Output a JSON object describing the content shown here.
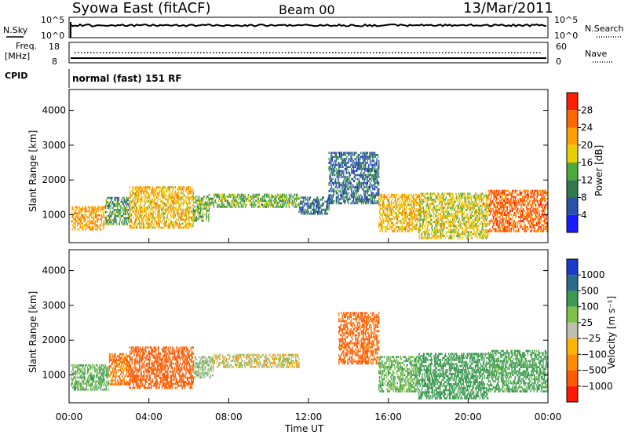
{
  "header": {
    "station": "Syowa East (fitACF)",
    "beam": "Beam 00",
    "date": "13/Mar/2011"
  },
  "summary_panels": {
    "nsky_label": "N.Sky",
    "nsearch_label": "N.Search",
    "nsky_ticks": [
      "10^5",
      "10^0"
    ],
    "nsearch_ticks": [
      "10^5",
      "10^0"
    ],
    "freq_label_1": "Freq.",
    "freq_label_2": "[MHz]",
    "freq_ticks": [
      "18",
      "8"
    ],
    "nave_label": "Nave",
    "nave_ticks": [
      "60",
      "0"
    ],
    "cpid_label": "CPID",
    "cpid_text": "normal (fast) 151 RF"
  },
  "colors": {
    "power_scale": [
      "#1a1aff",
      "#2a52a8",
      "#2e7a4c",
      "#4caa3c",
      "#e8d000",
      "#ffa000",
      "#ff6800",
      "#ff2000"
    ],
    "velocity_scale": [
      "#ff1a00",
      "#ff5a00",
      "#ff8c00",
      "#ffb400",
      "#c0c0b0",
      "#7ec24a",
      "#3c9a50",
      "#2a6a8a",
      "#1a3ac8"
    ]
  },
  "chart_data": [
    {
      "type": "heatmap",
      "name": "power",
      "ylabel": "Slant Range [km]",
      "y_ticks": [
        "1000",
        "2000",
        "3000",
        "4000"
      ],
      "ylim": [
        200,
        4600
      ],
      "xlim": [
        0,
        24
      ],
      "colorbar_label": "Power [dB]",
      "colorbar_ticks": [
        "4",
        "8",
        "12",
        "16",
        "20",
        "24",
        "28"
      ],
      "clim": [
        0,
        32
      ],
      "regions": [
        {
          "t0": 0.1,
          "t1": 1.8,
          "r0": 550,
          "r1": 1200,
          "v": 22
        },
        {
          "t0": 1.8,
          "t1": 3.0,
          "r0": 700,
          "r1": 1500,
          "v": 12
        },
        {
          "t0": 3.0,
          "t1": 6.2,
          "r0": 600,
          "r1": 1800,
          "v": 20
        },
        {
          "t0": 6.2,
          "t1": 7.0,
          "r0": 800,
          "r1": 1500,
          "v": 14
        },
        {
          "t0": 7.0,
          "t1": 11.5,
          "r0": 1200,
          "r1": 1600,
          "v": 14
        },
        {
          "t0": 11.5,
          "t1": 13.0,
          "r0": 1000,
          "r1": 1500,
          "v": 8
        },
        {
          "t0": 13.0,
          "t1": 15.5,
          "r0": 1300,
          "r1": 2800,
          "v": 8
        },
        {
          "t0": 15.5,
          "t1": 17.5,
          "r0": 500,
          "r1": 1600,
          "v": 20
        },
        {
          "t0": 17.5,
          "t1": 21.0,
          "r0": 300,
          "r1": 1600,
          "v": 18
        },
        {
          "t0": 21.0,
          "t1": 24.0,
          "r0": 500,
          "r1": 1700,
          "v": 26
        }
      ]
    },
    {
      "type": "heatmap",
      "name": "velocity",
      "ylabel": "Slant Range [km]",
      "y_ticks": [
        "1000",
        "2000",
        "3000",
        "4000"
      ],
      "ylim": [
        200,
        4600
      ],
      "xlabel": "Time UT",
      "x_ticks": [
        "00:00",
        "04:00",
        "08:00",
        "12:00",
        "16:00",
        "20:00",
        "00:00"
      ],
      "xlim": [
        0,
        24
      ],
      "colorbar_label": "Velocity [m s⁻¹]",
      "colorbar_ticks": [
        "1000",
        "500",
        "100",
        "25",
        "−25",
        "−100",
        "−500",
        "−1000"
      ],
      "regions": [
        {
          "t0": 0.1,
          "t1": 2.0,
          "r0": 550,
          "r1": 1300,
          "v": 100
        },
        {
          "t0": 2.0,
          "t1": 3.0,
          "r0": 700,
          "r1": 1600,
          "v": -100
        },
        {
          "t0": 3.0,
          "t1": 6.2,
          "r0": 600,
          "r1": 1800,
          "v": -200
        },
        {
          "t0": 6.2,
          "t1": 7.2,
          "r0": 900,
          "r1": 1500,
          "v": 50
        },
        {
          "t0": 7.2,
          "t1": 11.5,
          "r0": 1200,
          "r1": 1600,
          "v": 0
        },
        {
          "t0": 13.5,
          "t1": 15.5,
          "r0": 1300,
          "r1": 2800,
          "v": -150
        },
        {
          "t0": 15.5,
          "t1": 17.5,
          "r0": 500,
          "r1": 1500,
          "v": 100
        },
        {
          "t0": 17.5,
          "t1": 21.0,
          "r0": 300,
          "r1": 1600,
          "v": 200
        },
        {
          "t0": 21.0,
          "t1": 24.0,
          "r0": 500,
          "r1": 1700,
          "v": 150
        }
      ]
    }
  ]
}
